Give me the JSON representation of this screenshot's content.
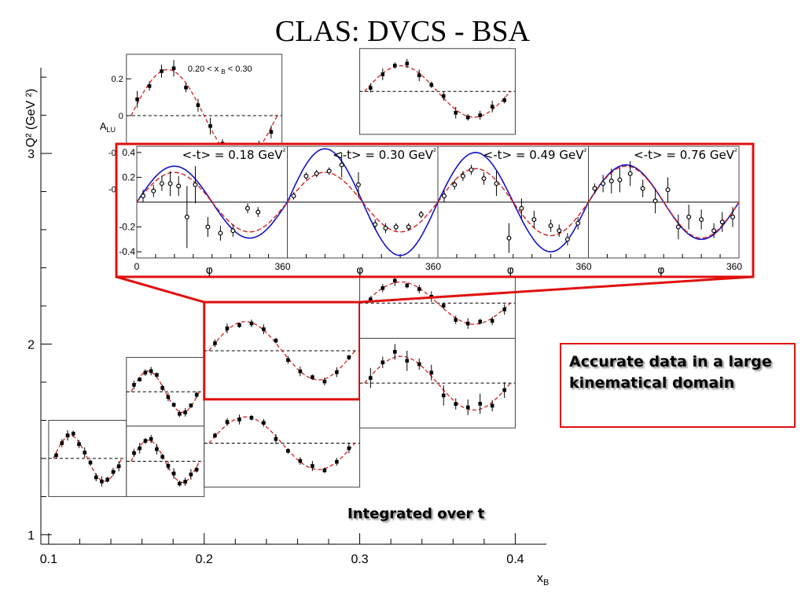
{
  "title": "CLAS: DVCS - BSA",
  "callout": "Accurate data in a large kinematical domain",
  "integrated_label": "Integrated over t",
  "colors": {
    "highlight": "#e01010",
    "model_dashed": "#d42020",
    "model_solid": "#1414c8",
    "data": "#000000"
  },
  "chart_data": [
    {
      "type": "scatter",
      "name": "overview-grid",
      "xlabel": "x_B",
      "ylabel": "Q² (GeV ²)",
      "xlim": [
        0.095,
        0.42
      ],
      "ylim": [
        0.95,
        3.45
      ],
      "xticks": [
        "0.1",
        "0.2",
        "0.3",
        "0.4"
      ],
      "yticks": [
        "1",
        "2",
        "3"
      ],
      "panel_y_axis": {
        "label": "A_LU",
        "ticks": [
          "0.4",
          "0.2",
          "0",
          "-0.2",
          "-0.4"
        ],
        "ylim": [
          -0.45,
          0.45
        ]
      },
      "first_panel_label": "0.20 < x_B < 0.30",
      "phi_range_deg": [
        0,
        360
      ],
      "bins": [
        {
          "xb": [
            0.1,
            0.15
          ],
          "q2": [
            1.2,
            1.6
          ],
          "amp": 0.2
        },
        {
          "xb": [
            0.15,
            0.2
          ],
          "q2": [
            1.2,
            1.57
          ],
          "amp": 0.18
        },
        {
          "xb": [
            0.15,
            0.2
          ],
          "q2": [
            1.57,
            1.93
          ],
          "amp": 0.22
        },
        {
          "xb": [
            0.2,
            0.3
          ],
          "q2": [
            1.25,
            1.71
          ],
          "amp": 0.24
        },
        {
          "xb": [
            0.2,
            0.3
          ],
          "q2": [
            1.71,
            2.22
          ],
          "amp": 0.27,
          "highlight": true
        },
        {
          "xb": [
            0.3,
            0.4
          ],
          "q2": [
            1.56,
            2.03
          ],
          "amp": 0.12
        },
        {
          "xb": [
            0.3,
            0.4
          ],
          "q2": [
            2.03,
            2.4
          ],
          "amp": 0.18
        },
        {
          "xb": [
            0.3,
            0.4
          ],
          "q2": [
            3.1,
            3.55
          ],
          "amp": 0.2
        },
        {
          "xb": [
            0.15,
            0.25
          ],
          "q2": [
            2.85,
            3.52
          ],
          "amp": 0.25,
          "label": true
        }
      ]
    },
    {
      "type": "scatter",
      "name": "t-dependence-zoom",
      "xlabel": "φ",
      "xlim": [
        0,
        360
      ],
      "ylim": [
        -0.45,
        0.45
      ],
      "yticks": [
        "0.4",
        "0.2",
        "-0.2",
        "-0.4"
      ],
      "xticks": [
        "0",
        "360",
        "360",
        "360",
        "360"
      ],
      "panels": [
        {
          "label": "<-t> = 0.18 GeV²",
          "fit_amp": 0.24,
          "model_amp": 0.29,
          "points": [
            [
              15,
              0.05,
              0.05
            ],
            [
              40,
              0.09,
              0.05
            ],
            [
              60,
              0.15,
              0.06
            ],
            [
              80,
              0.15,
              0.1
            ],
            [
              100,
              0.13,
              0.08
            ],
            [
              120,
              -0.12,
              0.25
            ],
            [
              140,
              0.14,
              0.15
            ],
            [
              170,
              -0.2,
              0.08
            ],
            [
              200,
              -0.25,
              0.06
            ],
            [
              230,
              -0.23,
              0.05
            ],
            [
              265,
              -0.05,
              0.04
            ],
            [
              290,
              -0.08,
              0.04
            ]
          ]
        },
        {
          "label": "<-t> = 0.30 GeV²",
          "fit_amp": 0.24,
          "model_amp": 0.43,
          "points": [
            [
              15,
              0.05,
              0.03
            ],
            [
              45,
              0.21,
              0.03
            ],
            [
              70,
              0.23,
              0.03
            ],
            [
              100,
              0.25,
              0.03
            ],
            [
              130,
              0.3,
              0.1
            ],
            [
              170,
              0.14,
              0.1
            ],
            [
              210,
              -0.18,
              0.04
            ],
            [
              235,
              -0.21,
              0.04
            ],
            [
              260,
              -0.2,
              0.03
            ],
            [
              290,
              -0.2,
              0.03
            ],
            [
              320,
              -0.1,
              0.03
            ]
          ]
        },
        {
          "label": "<-t> = 0.49 GeV²",
          "fit_amp": 0.27,
          "model_amp": 0.4,
          "points": [
            [
              15,
              0.05,
              0.05
            ],
            [
              40,
              0.14,
              0.04
            ],
            [
              60,
              0.21,
              0.04
            ],
            [
              80,
              0.26,
              0.04
            ],
            [
              110,
              0.19,
              0.05
            ],
            [
              140,
              0.15,
              0.1
            ],
            [
              170,
              -0.29,
              0.12
            ],
            [
              200,
              -0.05,
              0.08
            ],
            [
              230,
              -0.14,
              0.07
            ],
            [
              270,
              -0.19,
              0.05
            ],
            [
              290,
              -0.23,
              0.05
            ],
            [
              310,
              -0.3,
              0.05
            ],
            [
              335,
              -0.17,
              0.05
            ]
          ]
        },
        {
          "label": "<-t> = 0.76 GeV²",
          "fit_amp": 0.29,
          "model_amp": 0.3,
          "points": [
            [
              15,
              0.11,
              0.04
            ],
            [
              35,
              0.15,
              0.07
            ],
            [
              55,
              0.17,
              0.1
            ],
            [
              75,
              0.18,
              0.1
            ],
            [
              100,
              0.23,
              0.1
            ],
            [
              130,
              0.11,
              0.07
            ],
            [
              160,
              0.01,
              0.1
            ],
            [
              190,
              0.1,
              0.1
            ],
            [
              215,
              -0.2,
              0.1
            ],
            [
              240,
              -0.12,
              0.1
            ],
            [
              270,
              -0.14,
              0.08
            ],
            [
              300,
              -0.23,
              0.06
            ],
            [
              320,
              -0.16,
              0.08
            ],
            [
              345,
              -0.12,
              0.08
            ]
          ]
        }
      ]
    }
  ]
}
